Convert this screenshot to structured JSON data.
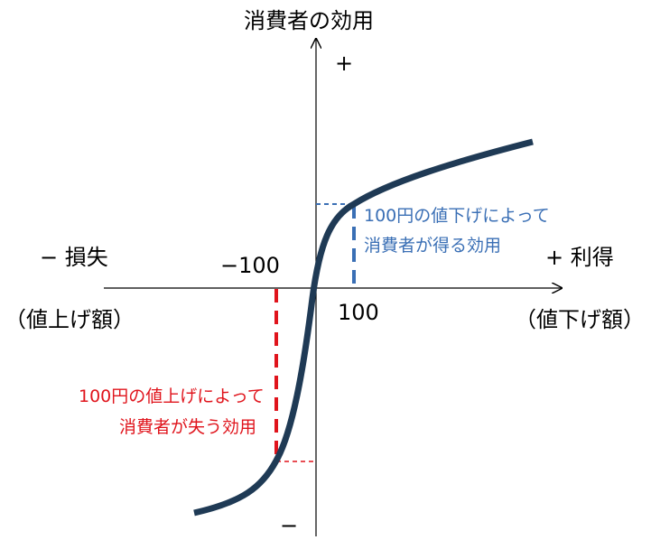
{
  "axes": {
    "y_title": "消費者の効用",
    "y_positive": "+",
    "y_negative": "−",
    "x_negative_label": "− 損失",
    "x_negative_sub": "（値上げ額）",
    "x_positive_label": "+ 利得",
    "x_positive_sub": "（値下げ額）",
    "tick_negative": "−100",
    "tick_positive": "100"
  },
  "annotations": {
    "gain": [
      "100円の値下げによって",
      "消費者が得る効用"
    ],
    "loss": [
      "100円の値上げによって",
      "消費者が失う効用"
    ]
  },
  "colors": {
    "curve": "#1f3a55",
    "gain": "#3a6fb5",
    "loss": "#e0141c",
    "axis": "#000000"
  }
}
